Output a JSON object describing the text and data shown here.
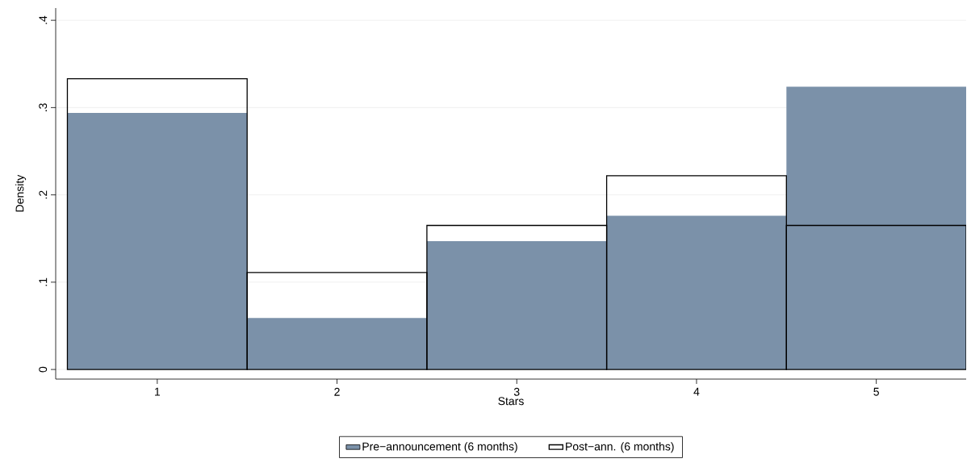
{
  "chart_data": {
    "type": "histogram",
    "xlabel": "Stars",
    "ylabel": "Density",
    "bins": [
      0.5,
      1.5,
      2.5,
      3.5,
      4.5,
      5.5
    ],
    "series": [
      {
        "name": "Pre−announcement (6 months)",
        "color": "#7b91a9",
        "values": [
          0.294,
          0.059,
          0.147,
          0.176,
          0.324
        ]
      },
      {
        "name": "Post−ann. (6 months)",
        "color": "#000000",
        "values": [
          0.333,
          0.111,
          0.165,
          0.222,
          0.165
        ]
      }
    ],
    "xlim": [
      0.435,
      5.5
    ],
    "ylim": [
      -0.011,
      0.414
    ],
    "xticks": [
      1,
      2,
      3,
      4,
      5
    ],
    "yticks": [
      {
        "value": 0,
        "label": "0"
      },
      {
        "value": 0.1,
        "label": ".1"
      },
      {
        "value": 0.2,
        "label": ".2"
      },
      {
        "value": 0.3,
        "label": ".3"
      },
      {
        "value": 0.4,
        "label": ".4"
      }
    ],
    "grid": "y",
    "legend": "bottom"
  }
}
